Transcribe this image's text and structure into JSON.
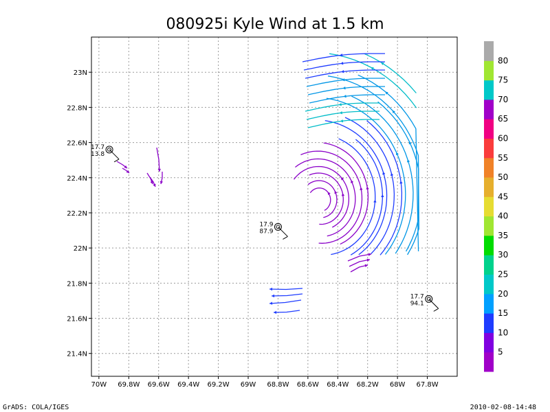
{
  "chart_data": {
    "type": "streamline",
    "title": "080925i Kyle Wind at 1.5 km",
    "xlim": [
      -70.05,
      -67.6
    ],
    "ylim": [
      21.27,
      23.2
    ],
    "x_ticks": [
      -70,
      -69.8,
      -69.6,
      -69.4,
      -69.2,
      -69,
      -68.8,
      -68.6,
      -68.4,
      -68.2,
      -68,
      -67.8
    ],
    "x_tick_labels": [
      "70W",
      "69.8W",
      "69.6W",
      "69.4W",
      "69.2W",
      "69W",
      "68.8W",
      "68.6W",
      "68.4W",
      "68.2W",
      "68W",
      "67.8W"
    ],
    "y_ticks": [
      21.4,
      21.6,
      21.8,
      22,
      22.2,
      22.4,
      22.6,
      22.8,
      23
    ],
    "y_tick_labels": [
      "21.4N",
      "21.6N",
      "21.8N",
      "22N",
      "22.2N",
      "22.4N",
      "22.6N",
      "22.8N",
      "23N"
    ],
    "grid": true,
    "legend_position": "right colorbar",
    "colorbar": {
      "labels": [
        "5",
        "10",
        "15",
        "20",
        "25",
        "30",
        "35",
        "40",
        "45",
        "50",
        "55",
        "60",
        "65",
        "70",
        "75",
        "80"
      ],
      "colors": [
        "#a000c8",
        "#8000e0",
        "#1e3cff",
        "#00a0ff",
        "#00c8c8",
        "#00d28c",
        "#00dc00",
        "#a0e632",
        "#e6dc32",
        "#e6af2d",
        "#f08228",
        "#fa3c3c",
        "#f00082",
        "#a000c8",
        "#00c8c8",
        "#a0e632",
        "#aaaaaa"
      ]
    },
    "vortex_center": {
      "lon": -68.52,
      "lat": 22.27
    },
    "stations": [
      {
        "lon": -69.93,
        "lat": 22.56,
        "label_top": "17.7",
        "label_bottom": "13.8"
      },
      {
        "lon": -68.8,
        "lat": 22.12,
        "label_top": "17.9",
        "label_bottom": "87.9"
      },
      {
        "lon": -67.79,
        "lat": 21.71,
        "label_top": "17.7",
        "label_bottom": "94.1"
      }
    ],
    "footer_left": "GrADS: COLA/IGES",
    "footer_right": "2010-02-08-14:48"
  }
}
